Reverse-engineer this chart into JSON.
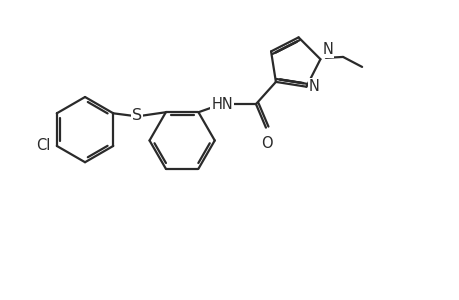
{
  "background_color": "#ffffff",
  "line_color": "#2a2a2a",
  "line_width": 1.6,
  "font_size": 10.5,
  "figsize": [
    4.6,
    3.0
  ],
  "dpi": 100,
  "xlim": [
    0,
    10
  ],
  "ylim": [
    -1.5,
    5.0
  ]
}
